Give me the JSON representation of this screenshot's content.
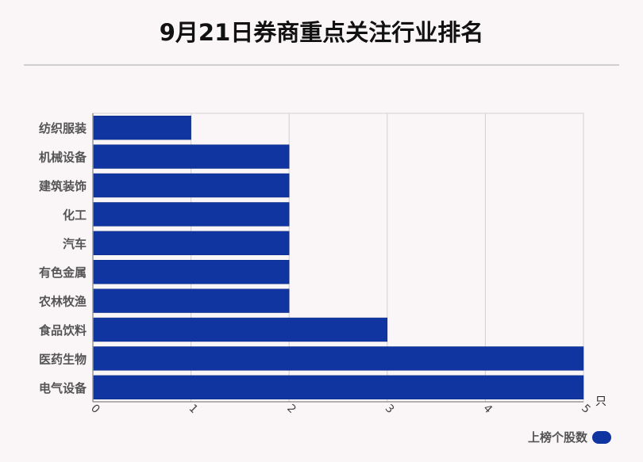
{
  "chart_data": {
    "type": "bar",
    "orientation": "horizontal",
    "title": "9月21日券商重点关注行业排名",
    "categories": [
      "纺织服装",
      "机械设备",
      "建筑装饰",
      "化工",
      "汽车",
      "有色金属",
      "农林牧渔",
      "食品饮料",
      "医药生物",
      "电气设备"
    ],
    "series": [
      {
        "name": "上榜个股数",
        "values": [
          1,
          2,
          2,
          2,
          2,
          2,
          2,
          3,
          5,
          5
        ]
      }
    ],
    "xlabel": "只",
    "ylabel": "",
    "xlim": [
      0,
      5
    ],
    "xticks": [
      "0",
      "1",
      "2",
      "3",
      "4",
      "5"
    ],
    "grid": true,
    "legend_position": "bottom-right",
    "color": "#1035a0"
  }
}
